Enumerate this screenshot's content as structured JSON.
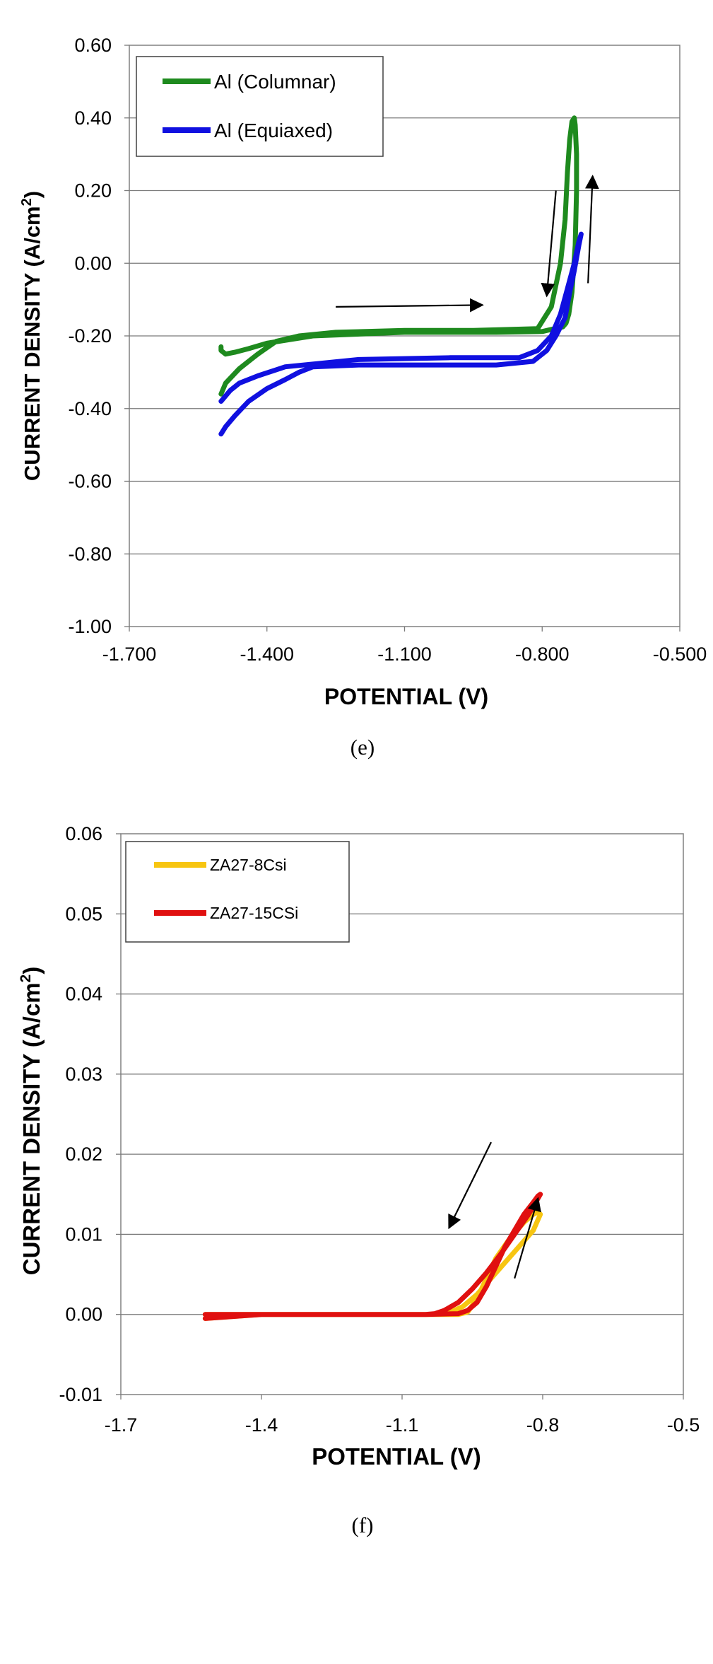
{
  "chart_data": [
    {
      "type": "line",
      "caption": "(e)",
      "xlabel": "POTENTIAL (V)",
      "ylabel": "CURRENT DENSITY (A/cm",
      "ylabel_sup": "2",
      "ylabel_close": ")",
      "xlim": [
        -1.7,
        -0.5
      ],
      "ylim": [
        -1.0,
        0.6
      ],
      "xticks": [
        -1.7,
        -1.4,
        -1.1,
        -0.8,
        -0.5
      ],
      "xtick_labels": [
        "-1.700",
        "-1.400",
        "-1.100",
        "-0.800",
        "-0.500"
      ],
      "yticks": [
        0.6,
        0.4,
        0.2,
        0.0,
        -0.2,
        -0.4,
        -0.6,
        -0.8,
        -1.0
      ],
      "ytick_labels": [
        "0.60",
        "0.40",
        "0.20",
        "0.00",
        "-0.20",
        "-0.40",
        "-0.60",
        "-0.80",
        "-1.00"
      ],
      "grid": "horizontal",
      "legend_position": "top-left",
      "series": [
        {
          "name": "Al (Columnar)",
          "color": "#1e8a1e",
          "x": [
            -1.5,
            -1.49,
            -1.46,
            -1.42,
            -1.38,
            -1.33,
            -1.25,
            -1.1,
            -0.95,
            -0.81,
            -0.78,
            -0.76,
            -0.75,
            -0.745,
            -0.74,
            -0.735,
            -0.73,
            -0.728,
            -0.725,
            -0.725,
            -0.728,
            -0.735,
            -0.742,
            -0.748,
            -0.755,
            -0.765,
            -0.78,
            -0.8,
            -0.9,
            -1.1,
            -1.3,
            -1.4,
            -1.44,
            -1.47,
            -1.49,
            -1.5,
            -1.5
          ],
          "y": [
            -0.36,
            -0.33,
            -0.29,
            -0.25,
            -0.215,
            -0.2,
            -0.19,
            -0.185,
            -0.185,
            -0.18,
            -0.12,
            0.0,
            0.12,
            0.25,
            0.34,
            0.39,
            0.4,
            0.38,
            0.3,
            0.2,
            0.05,
            -0.08,
            -0.14,
            -0.165,
            -0.175,
            -0.178,
            -0.182,
            -0.188,
            -0.19,
            -0.19,
            -0.2,
            -0.22,
            -0.235,
            -0.245,
            -0.25,
            -0.24,
            -0.23
          ]
        },
        {
          "name": "Al (Equiaxed)",
          "color": "#1010e0",
          "x": [
            -1.5,
            -1.49,
            -1.47,
            -1.44,
            -1.4,
            -1.36,
            -1.33,
            -1.3,
            -1.2,
            -1.0,
            -0.9,
            -0.82,
            -0.79,
            -0.77,
            -0.75,
            -0.74,
            -0.73,
            -0.72,
            -0.715,
            -0.72,
            -0.73,
            -0.745,
            -0.76,
            -0.78,
            -0.81,
            -0.85,
            -1.0,
            -1.2,
            -1.36,
            -1.42,
            -1.46,
            -1.48,
            -1.5
          ],
          "y": [
            -0.47,
            -0.45,
            -0.42,
            -0.38,
            -0.345,
            -0.32,
            -0.3,
            -0.285,
            -0.28,
            -0.28,
            -0.28,
            -0.27,
            -0.24,
            -0.2,
            -0.15,
            -0.08,
            -0.02,
            0.05,
            0.08,
            0.06,
            0.0,
            -0.07,
            -0.14,
            -0.2,
            -0.24,
            -0.26,
            -0.26,
            -0.265,
            -0.285,
            -0.31,
            -0.33,
            -0.35,
            -0.38
          ]
        }
      ],
      "annotations": [
        {
          "type": "arrow",
          "label": "forward-scan-arrow",
          "from": [
            -1.25,
            -0.12
          ],
          "to": [
            -0.93,
            -0.115
          ]
        },
        {
          "type": "arrow",
          "label": "reverse-scan-arrow",
          "from": [
            -0.77,
            0.2
          ],
          "to": [
            -0.79,
            -0.09
          ]
        },
        {
          "type": "arrow",
          "label": "anodic-scan-arrow",
          "from": [
            -0.7,
            -0.055
          ],
          "to": [
            -0.69,
            0.24
          ]
        }
      ]
    },
    {
      "type": "line",
      "caption": "(f)",
      "xlabel": "POTENTIAL (V)",
      "ylabel": "CURRENT DENSITY (A/cm",
      "ylabel_sup": "2",
      "ylabel_close": ")",
      "xlim": [
        -1.7,
        -0.5
      ],
      "ylim": [
        -0.01,
        0.06
      ],
      "xticks": [
        -1.7,
        -1.4,
        -1.1,
        -0.8,
        -0.5
      ],
      "xtick_labels": [
        "-1.7",
        "-1.4",
        "-1.1",
        "-0.8",
        "-0.5"
      ],
      "yticks": [
        0.06,
        0.05,
        0.04,
        0.03,
        0.02,
        0.01,
        0.0,
        -0.01
      ],
      "ytick_labels": [
        "0.06",
        "0.05",
        "0.04",
        "0.03",
        "0.02",
        "0.01",
        "0.00",
        "-0.01"
      ],
      "grid": "horizontal",
      "legend_position": "top-left",
      "series": [
        {
          "name": "ZA27-8Csi",
          "color": "#f7c511",
          "x": [
            -1.52,
            -1.4,
            -1.2,
            -1.05,
            -0.98,
            -0.96,
            -0.94,
            -0.92,
            -0.9,
            -0.87,
            -0.84,
            -0.82,
            -0.81,
            -0.805,
            -0.82,
            -0.85,
            -0.88,
            -0.91,
            -0.94,
            -0.97,
            -1.0,
            -1.02,
            -1.05,
            -1.2,
            -1.4,
            -1.52
          ],
          "y": [
            -0.0005,
            0.0,
            0.0,
            0.0,
            0.0,
            0.0003,
            0.002,
            0.0045,
            0.007,
            0.0095,
            0.0115,
            0.0125,
            0.0128,
            0.0125,
            0.0105,
            0.0085,
            0.0065,
            0.0045,
            0.0025,
            0.001,
            0.0002,
            0.0,
            0.0,
            0.0,
            0.0,
            0.0
          ]
        },
        {
          "name": "ZA27-15CSi",
          "color": "#e01010",
          "x": [
            -1.52,
            -1.4,
            -1.2,
            -1.05,
            -0.98,
            -0.96,
            -0.94,
            -0.92,
            -0.9,
            -0.88,
            -0.86,
            -0.84,
            -0.82,
            -0.81,
            -0.805,
            -0.81,
            -0.83,
            -0.86,
            -0.89,
            -0.92,
            -0.95,
            -0.98,
            -1.01,
            -1.03,
            -1.05,
            -1.2,
            -1.4,
            -1.52
          ],
          "y": [
            -0.0005,
            0.0,
            0.0,
            0.0,
            0.0001,
            0.0005,
            0.0015,
            0.0035,
            0.006,
            0.0085,
            0.0105,
            0.0125,
            0.014,
            0.0148,
            0.015,
            0.0145,
            0.0125,
            0.01,
            0.0075,
            0.0052,
            0.0032,
            0.0015,
            0.0005,
            0.0001,
            0.0,
            0.0,
            0.0,
            0.0
          ]
        }
      ],
      "annotations": [
        {
          "type": "arrow",
          "label": "reverse-scan-arrow",
          "from": [
            -0.91,
            0.0215
          ],
          "to": [
            -1.0,
            0.0108
          ]
        },
        {
          "type": "arrow",
          "label": "forward-scan-arrow",
          "from": [
            -0.86,
            0.0045
          ],
          "to": [
            -0.81,
            0.0145
          ]
        }
      ]
    }
  ]
}
